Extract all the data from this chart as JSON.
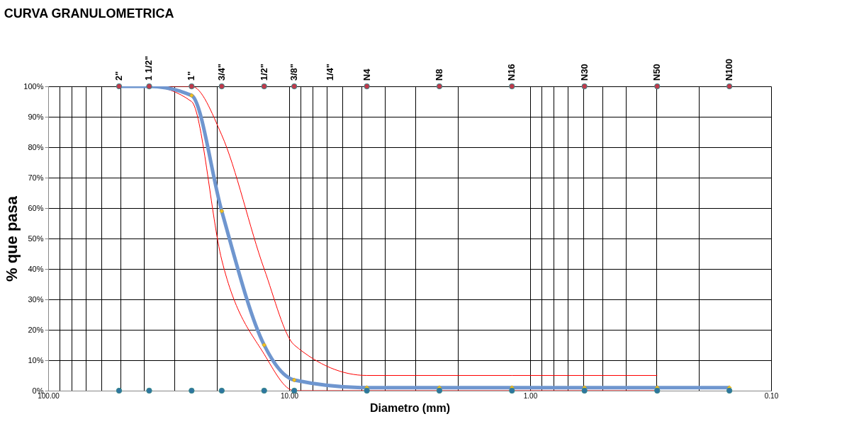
{
  "chart_data": {
    "type": "line",
    "title": "CURVA GRANULOMETRICA",
    "xlabel": "Diametro  (mm)",
    "ylabel": "% que pasa",
    "log": "x",
    "grid": true,
    "xlim": [
      100,
      0.1
    ],
    "ylim": [
      0,
      100
    ],
    "xticks": [
      {
        "value": 100,
        "label": "100.00"
      },
      {
        "value": 90,
        "label": null
      },
      {
        "value": 80,
        "label": null
      },
      {
        "value": 70,
        "label": null
      },
      {
        "value": 60,
        "label": null
      },
      {
        "value": 50,
        "label": null
      },
      {
        "value": 40,
        "label": null
      },
      {
        "value": 30,
        "label": null
      },
      {
        "value": 20,
        "label": null
      },
      {
        "value": 10,
        "label": "10.00"
      },
      {
        "value": 9,
        "label": null
      },
      {
        "value": 8,
        "label": null
      },
      {
        "value": 7,
        "label": null
      },
      {
        "value": 6,
        "label": null
      },
      {
        "value": 5,
        "label": null
      },
      {
        "value": 4,
        "label": null
      },
      {
        "value": 3,
        "label": null
      },
      {
        "value": 2,
        "label": null
      },
      {
        "value": 1,
        "label": "1.00"
      },
      {
        "value": 0.9,
        "label": null
      },
      {
        "value": 0.8,
        "label": null
      },
      {
        "value": 0.7,
        "label": null
      },
      {
        "value": 0.6,
        "label": null
      },
      {
        "value": 0.5,
        "label": null
      },
      {
        "value": 0.4,
        "label": null
      },
      {
        "value": 0.3,
        "label": null
      },
      {
        "value": 0.2,
        "label": null
      },
      {
        "value": 0.1,
        "label": "0.10"
      }
    ],
    "annotations": [
      {
        "text": "2\"",
        "x": 50.8,
        "y": 100
      },
      {
        "text": "1 1/2\"",
        "x": 38.1,
        "y": 100
      },
      {
        "text": "1\"",
        "x": 25.4,
        "y": 100
      },
      {
        "text": "3/4\"",
        "x": 19.05,
        "y": 100
      },
      {
        "text": "1/2\"",
        "x": 12.7,
        "y": 100
      },
      {
        "text": "3/8\"",
        "x": 9.525,
        "y": 100
      },
      "1/4\"",
      {
        "text": "N4",
        "x": 4.76,
        "y": 100
      },
      {
        "text": "N8",
        "x": 2.38,
        "y": 100
      },
      {
        "text": "N16",
        "x": 1.19,
        "y": 100
      },
      {
        "text": "N30",
        "x": 0.595,
        "y": 100
      },
      {
        "text": "N50",
        "x": 0.297,
        "y": 100
      },
      {
        "text": "N100",
        "x": 0.149,
        "y": 100
      }
    ],
    "yticks": [
      {
        "value": 0,
        "label": "0%"
      },
      {
        "value": 10,
        "label": "10%"
      },
      {
        "value": 20,
        "label": "20%"
      },
      {
        "value": 30,
        "label": "30%"
      },
      {
        "value": 40,
        "label": "40%"
      },
      {
        "value": 50,
        "label": "50%"
      },
      {
        "value": 60,
        "label": "60%"
      },
      {
        "value": 70,
        "label": "70%"
      },
      {
        "value": 80,
        "label": "80%"
      },
      {
        "value": 90,
        "label": "90%"
      },
      {
        "value": 100,
        "label": "100%"
      }
    ],
    "series": [
      {
        "color": "#ff0000",
        "marker": "none",
        "x": [
          50.8,
          38.1,
          25.4,
          19.05,
          12.7,
          9.525,
          4.76,
          2.38,
          1.19,
          0.595,
          0.297
        ],
        "values": [
          100,
          100,
          95,
          43,
          12,
          0,
          0,
          0,
          0,
          0,
          0
        ]
      },
      {
        "color": "#ff0000",
        "marker": "none",
        "x": [
          50.8,
          38.1,
          25.4,
          19.05,
          12.7,
          9.525,
          4.76,
          2.38,
          1.19,
          0.595,
          0.297
        ],
        "values": [
          100,
          100,
          100,
          84,
          40,
          15,
          5,
          5,
          5,
          5,
          5
        ]
      },
      {
        "color": "#6f96cf",
        "marker": "diamond",
        "x": [
          50.8,
          38.1,
          25.4,
          19.05,
          12.7,
          9.525,
          4.76,
          2.38,
          1.19,
          0.595,
          0.297,
          0.149
        ],
        "values": [
          100,
          100,
          97,
          59,
          15,
          3.5,
          1,
          1,
          1,
          1,
          1,
          1
        ]
      },
      {
        "type": "scatter",
        "color": "#c0394b",
        "marker": "circle",
        "x": [
          50.8,
          38.1,
          25.4,
          19.05,
          12.7,
          9.525,
          4.76,
          2.38,
          1.19,
          0.595,
          0.297,
          0.149
        ],
        "values": [
          100,
          100,
          100,
          100,
          100,
          100,
          100,
          100,
          100,
          100,
          100,
          100
        ]
      },
      {
        "type": "scatter",
        "color": "#2e75a0",
        "marker": "circle",
        "x": [
          50.8,
          38.1,
          25.4,
          19.05,
          12.7,
          9.525,
          4.76,
          2.38,
          1.19,
          0.595,
          0.297,
          0.149
        ],
        "values": [
          0,
          0,
          0,
          0,
          0,
          0,
          0,
          0,
          0,
          0,
          0,
          0
        ]
      }
    ]
  }
}
